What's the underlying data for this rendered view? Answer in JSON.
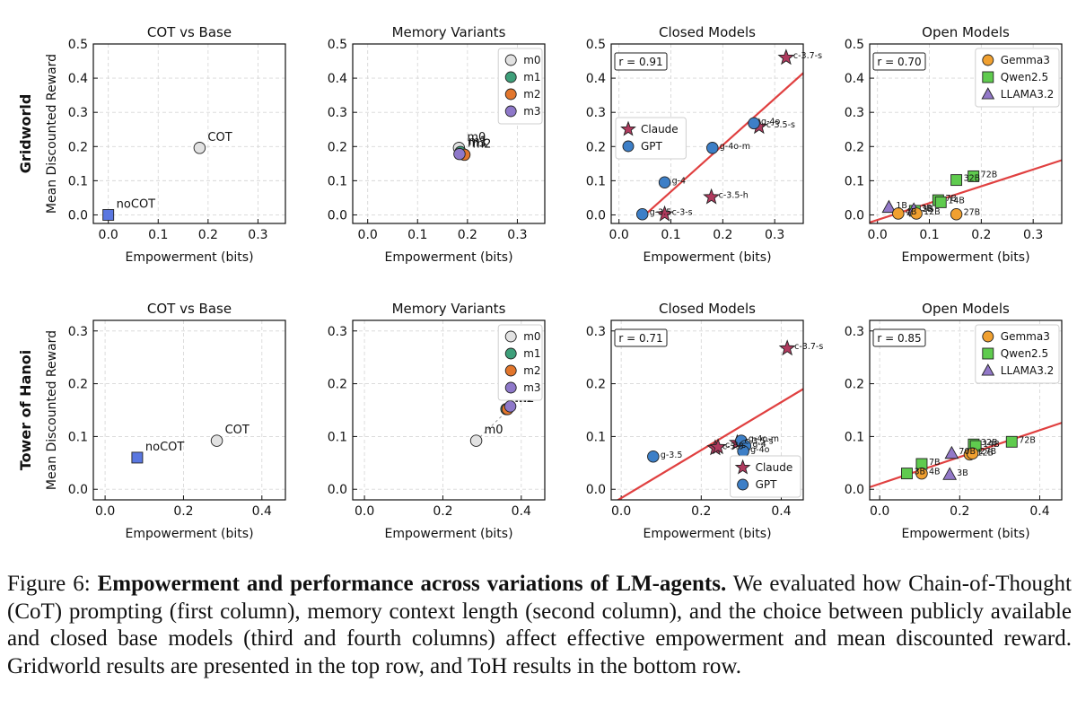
{
  "figure": {
    "x_label": "Empowerment (bits)",
    "y_label": "Mean Discounted Reward",
    "row_labels": [
      "Gridworld",
      "Tower of Hanoi"
    ]
  },
  "caption": {
    "prefix": "Figure 6: ",
    "bold": "Empowerment and performance across variations of LM-agents.",
    "text": " We evaluated how Chain-of-Thought (CoT) prompting (first column), memory context length (second column), and the choice between publicly available and closed base models (third and fourth columns) affect effective empowerment and mean discounted reward. Gridworld results are presented in the top row, and ToH results in the bottom row."
  },
  "colors": {
    "claude": "#b03a5e",
    "gpt": "#3d7fc7",
    "gemma": "#f0a030",
    "qwen": "#5fcb4e",
    "llama": "#9278c8",
    "m0": "#e2e2e2",
    "m1": "#3e9f7a",
    "m2": "#e2762c",
    "m3": "#8e78c9",
    "noCOT": "#5a77e0",
    "fit": "#e04040"
  },
  "chart_data": [
    {
      "id": "gw-cot",
      "type": "scatter",
      "title": "COT vs Base",
      "xlim": [
        -0.03,
        0.355
      ],
      "ylim": [
        -0.025,
        0.5
      ],
      "xticks": [
        "0.0",
        "0.1",
        "0.2",
        "0.3"
      ],
      "xtick_vals": [
        0,
        0.1,
        0.2,
        0.3
      ],
      "yticks": [
        "0.0",
        "0.1",
        "0.2",
        "0.3",
        "0.4",
        "0.5"
      ],
      "ytick_vals": [
        0,
        0.1,
        0.2,
        0.3,
        0.4,
        0.5
      ],
      "show_ylabel": true,
      "row_label": 0,
      "points": [
        {
          "x": 0.183,
          "y": 0.196,
          "label": "COT",
          "marker": "circle",
          "color": "m0",
          "lsize": 13
        },
        {
          "x": 0.0,
          "y": 0.0,
          "label": "noCOT",
          "marker": "square",
          "color": "noCOT",
          "lsize": 13
        }
      ]
    },
    {
      "id": "gw-mem",
      "type": "scatter",
      "title": "Memory Variants",
      "xlim": [
        -0.03,
        0.355
      ],
      "ylim": [
        -0.025,
        0.5
      ],
      "xticks": [
        "0.0",
        "0.1",
        "0.2",
        "0.3"
      ],
      "xtick_vals": [
        0,
        0.1,
        0.2,
        0.3
      ],
      "yticks": [
        "0.0",
        "0.1",
        "0.2",
        "0.3",
        "0.4",
        "0.5"
      ],
      "ytick_vals": [
        0,
        0.1,
        0.2,
        0.3,
        0.4,
        0.5
      ],
      "legend": {
        "pos": "top-right",
        "entries": [
          {
            "label": "m0",
            "marker": "circle",
            "color": "m0"
          },
          {
            "label": "m1",
            "marker": "circle",
            "color": "m1"
          },
          {
            "label": "m2",
            "marker": "circle",
            "color": "m2"
          },
          {
            "label": "m3",
            "marker": "circle",
            "color": "m3"
          }
        ]
      },
      "points": [
        {
          "x": 0.183,
          "y": 0.196,
          "label": "m0",
          "marker": "circle",
          "color": "m0",
          "lsize": 13
        },
        {
          "x": 0.186,
          "y": 0.184,
          "label": "m1",
          "marker": "circle",
          "color": "m1",
          "lsize": 13
        },
        {
          "x": 0.194,
          "y": 0.176,
          "label": "m2",
          "marker": "circle",
          "color": "m2",
          "lsize": 13
        },
        {
          "x": 0.184,
          "y": 0.178,
          "label": "m3",
          "marker": "circle",
          "color": "m3",
          "lsize": 13
        }
      ]
    },
    {
      "id": "gw-closed",
      "type": "scatter",
      "title": "Closed Models",
      "xlim": [
        -0.015,
        0.355
      ],
      "ylim": [
        -0.025,
        0.5
      ],
      "xticks": [
        "0.0",
        "0.1",
        "0.2",
        "0.3"
      ],
      "xtick_vals": [
        0,
        0.1,
        0.2,
        0.3
      ],
      "yticks": [
        "0.0",
        "0.1",
        "0.2",
        "0.3",
        "0.4",
        "0.5"
      ],
      "ytick_vals": [
        0,
        0.1,
        0.2,
        0.3,
        0.4,
        0.5
      ],
      "r_box": "r = 0.91",
      "fit": {
        "x0": 0.05,
        "y0": 0.0,
        "x1": 0.355,
        "y1": 0.415
      },
      "legend": {
        "pos": "middle-left",
        "entries": [
          {
            "label": "Claude",
            "marker": "star",
            "color": "claude"
          },
          {
            "label": "GPT",
            "marker": "circle",
            "color": "gpt"
          }
        ]
      },
      "points": [
        {
          "x": 0.322,
          "y": 0.46,
          "label": "c-3.7-s",
          "marker": "star",
          "color": "claude"
        },
        {
          "x": 0.27,
          "y": 0.258,
          "label": "c-3.5-s",
          "marker": "star",
          "color": "claude"
        },
        {
          "x": 0.178,
          "y": 0.052,
          "label": "c-3.5-h",
          "marker": "star",
          "color": "claude"
        },
        {
          "x": 0.088,
          "y": 0.002,
          "label": "c-3-s",
          "marker": "star",
          "color": "claude"
        },
        {
          "x": 0.26,
          "y": 0.268,
          "label": "g-4o",
          "marker": "circle",
          "color": "gpt"
        },
        {
          "x": 0.18,
          "y": 0.196,
          "label": "g-4o-m",
          "marker": "circle",
          "color": "gpt"
        },
        {
          "x": 0.088,
          "y": 0.095,
          "label": "g-4",
          "marker": "circle",
          "color": "gpt"
        },
        {
          "x": 0.045,
          "y": 0.002,
          "label": "g-3.5",
          "marker": "circle",
          "color": "gpt"
        }
      ]
    },
    {
      "id": "gw-open",
      "type": "scatter",
      "title": "Open Models",
      "xlim": [
        -0.015,
        0.355
      ],
      "ylim": [
        -0.025,
        0.5
      ],
      "xticks": [
        "0.0",
        "0.1",
        "0.2",
        "0.3"
      ],
      "xtick_vals": [
        0,
        0.1,
        0.2,
        0.3
      ],
      "yticks": [
        "0.0",
        "0.1",
        "0.2",
        "0.3",
        "0.4",
        "0.5"
      ],
      "ytick_vals": [
        0,
        0.1,
        0.2,
        0.3,
        0.4,
        0.5
      ],
      "r_box": "r = 0.70",
      "fit": {
        "x0": -0.015,
        "y0": -0.022,
        "x1": 0.355,
        "y1": 0.16
      },
      "legend": {
        "pos": "top-right",
        "entries": [
          {
            "label": "Gemma3",
            "marker": "circle",
            "color": "gemma"
          },
          {
            "label": "Qwen2.5",
            "marker": "square",
            "color": "qwen"
          },
          {
            "label": "LLAMA3.2",
            "marker": "triangle",
            "color": "llama"
          }
        ]
      },
      "points": [
        {
          "x": 0.185,
          "y": 0.113,
          "label": "72B",
          "marker": "square",
          "color": "qwen"
        },
        {
          "x": 0.152,
          "y": 0.102,
          "label": "32B",
          "marker": "square",
          "color": "qwen"
        },
        {
          "x": 0.117,
          "y": 0.043,
          "label": "7B",
          "marker": "square",
          "color": "qwen"
        },
        {
          "x": 0.122,
          "y": 0.037,
          "label": "14B",
          "marker": "square",
          "color": "qwen"
        },
        {
          "x": 0.072,
          "y": 0.012,
          "label": "3B",
          "marker": "square",
          "color": "qwen"
        },
        {
          "x": 0.022,
          "y": 0.022,
          "label": "1B",
          "marker": "triangle",
          "color": "llama"
        },
        {
          "x": 0.07,
          "y": 0.015,
          "label": "3B",
          "marker": "triangle",
          "color": "llama"
        },
        {
          "x": 0.152,
          "y": 0.002,
          "label": "27B",
          "marker": "circle",
          "color": "gemma"
        },
        {
          "x": 0.04,
          "y": 0.004,
          "label": "4B",
          "marker": "circle",
          "color": "gemma"
        },
        {
          "x": 0.075,
          "y": 0.004,
          "label": "12B",
          "marker": "circle",
          "color": "gemma"
        }
      ]
    },
    {
      "id": "toh-cot",
      "type": "scatter",
      "title": "COT vs Base",
      "xlim": [
        -0.03,
        0.46
      ],
      "ylim": [
        -0.02,
        0.32
      ],
      "xticks": [
        "0.0",
        "0.2",
        "0.4"
      ],
      "xtick_vals": [
        0,
        0.2,
        0.4
      ],
      "yticks": [
        "0.0",
        "0.1",
        "0.2",
        "0.3"
      ],
      "ytick_vals": [
        0,
        0.1,
        0.2,
        0.3
      ],
      "show_ylabel": true,
      "row_label": 1,
      "points": [
        {
          "x": 0.285,
          "y": 0.092,
          "label": "COT",
          "marker": "circle",
          "color": "m0",
          "lsize": 13
        },
        {
          "x": 0.082,
          "y": 0.06,
          "label": "noCOT",
          "marker": "square",
          "color": "noCOT",
          "lsize": 13
        }
      ]
    },
    {
      "id": "toh-mem",
      "type": "scatter",
      "title": "Memory Variants",
      "xlim": [
        -0.03,
        0.46
      ],
      "ylim": [
        -0.02,
        0.32
      ],
      "xticks": [
        "0.0",
        "0.2",
        "0.4"
      ],
      "xtick_vals": [
        0,
        0.2,
        0.4
      ],
      "yticks": [
        "0.0",
        "0.1",
        "0.2",
        "0.3"
      ],
      "ytick_vals": [
        0,
        0.1,
        0.2,
        0.3
      ],
      "legend": {
        "pos": "top-right",
        "entries": [
          {
            "label": "m0",
            "marker": "circle",
            "color": "m0"
          },
          {
            "label": "m1",
            "marker": "circle",
            "color": "m1"
          },
          {
            "label": "m2",
            "marker": "circle",
            "color": "m2"
          },
          {
            "label": "m3",
            "marker": "circle",
            "color": "m3"
          }
        ]
      },
      "dashed_path": [
        [
          0.285,
          0.092
        ],
        [
          0.37,
          0.153
        ]
      ],
      "points": [
        {
          "x": 0.285,
          "y": 0.092,
          "label": "m0",
          "marker": "circle",
          "color": "m0",
          "lsize": 13
        },
        {
          "x": 0.362,
          "y": 0.152,
          "label": "m1",
          "marker": "circle",
          "color": "m1",
          "lsize": 13
        },
        {
          "x": 0.365,
          "y": 0.152,
          "label": "m2",
          "marker": "circle",
          "color": "m2",
          "lsize": 13
        },
        {
          "x": 0.372,
          "y": 0.157,
          "label": "m3",
          "marker": "circle",
          "color": "m3",
          "lsize": 13
        }
      ]
    },
    {
      "id": "toh-closed",
      "type": "scatter",
      "title": "Closed Models",
      "xlim": [
        -0.025,
        0.455
      ],
      "ylim": [
        -0.02,
        0.32
      ],
      "xticks": [
        "0.0",
        "0.2",
        "0.4"
      ],
      "xtick_vals": [
        0,
        0.2,
        0.4
      ],
      "yticks": [
        "0.0",
        "0.1",
        "0.2",
        "0.3"
      ],
      "ytick_vals": [
        0,
        0.1,
        0.2,
        0.3
      ],
      "r_box": "r = 0.71",
      "fit": {
        "x0": -0.025,
        "y0": -0.028,
        "x1": 0.455,
        "y1": 0.19
      },
      "legend": {
        "pos": "bottom-right",
        "entries": [
          {
            "label": "Claude",
            "marker": "star",
            "color": "claude"
          },
          {
            "label": "GPT",
            "marker": "circle",
            "color": "gpt"
          }
        ]
      },
      "points": [
        {
          "x": 0.415,
          "y": 0.267,
          "label": "c-3.7-s",
          "marker": "star",
          "color": "claude"
        },
        {
          "x": 0.235,
          "y": 0.078,
          "label": "c-3.5",
          "marker": "star",
          "color": "claude"
        },
        {
          "x": 0.242,
          "y": 0.08,
          "label": "c-3-s",
          "marker": "star",
          "color": "claude"
        },
        {
          "x": 0.29,
          "y": 0.088,
          "label": "c-3.5-s",
          "marker": "star",
          "color": "claude"
        },
        {
          "x": 0.08,
          "y": 0.062,
          "label": "g-3.5",
          "marker": "circle",
          "color": "gpt"
        },
        {
          "x": 0.3,
          "y": 0.092,
          "label": "g-4o-m",
          "marker": "circle",
          "color": "gpt"
        },
        {
          "x": 0.31,
          "y": 0.082,
          "label": "g-4",
          "marker": "circle",
          "color": "gpt"
        },
        {
          "x": 0.305,
          "y": 0.072,
          "label": "g-4o",
          "marker": "circle",
          "color": "gpt"
        }
      ]
    },
    {
      "id": "toh-open",
      "type": "scatter",
      "title": "Open Models",
      "xlim": [
        -0.025,
        0.455
      ],
      "ylim": [
        -0.02,
        0.32
      ],
      "xticks": [
        "0.0",
        "0.2",
        "0.4"
      ],
      "xtick_vals": [
        0,
        0.2,
        0.4
      ],
      "yticks": [
        "0.0",
        "0.1",
        "0.2",
        "0.3"
      ],
      "ytick_vals": [
        0,
        0.1,
        0.2,
        0.3
      ],
      "r_box": "r = 0.85",
      "fit": {
        "x0": -0.025,
        "y0": 0.004,
        "x1": 0.455,
        "y1": 0.126
      },
      "legend": {
        "pos": "top-right",
        "entries": [
          {
            "label": "Gemma3",
            "marker": "circle",
            "color": "gemma"
          },
          {
            "label": "Qwen2.5",
            "marker": "square",
            "color": "qwen"
          },
          {
            "label": "LLAMA3.2",
            "marker": "triangle",
            "color": "llama"
          }
        ]
      },
      "points": [
        {
          "x": 0.33,
          "y": 0.09,
          "label": "72B",
          "marker": "square",
          "color": "qwen"
        },
        {
          "x": 0.235,
          "y": 0.085,
          "label": "32B",
          "marker": "square",
          "color": "qwen"
        },
        {
          "x": 0.24,
          "y": 0.082,
          "label": "14B",
          "marker": "square",
          "color": "qwen"
        },
        {
          "x": 0.105,
          "y": 0.048,
          "label": "7B",
          "marker": "square",
          "color": "qwen"
        },
        {
          "x": 0.068,
          "y": 0.03,
          "label": "3B",
          "marker": "square",
          "color": "qwen"
        },
        {
          "x": 0.18,
          "y": 0.068,
          "label": "70B",
          "marker": "triangle",
          "color": "llama"
        },
        {
          "x": 0.175,
          "y": 0.028,
          "label": "3B",
          "marker": "triangle",
          "color": "llama"
        },
        {
          "x": 0.225,
          "y": 0.066,
          "label": "12B",
          "marker": "circle",
          "color": "gemma"
        },
        {
          "x": 0.232,
          "y": 0.068,
          "label": "27B",
          "marker": "circle",
          "color": "gemma"
        },
        {
          "x": 0.105,
          "y": 0.03,
          "label": "4B",
          "marker": "circle",
          "color": "gemma"
        }
      ]
    }
  ]
}
